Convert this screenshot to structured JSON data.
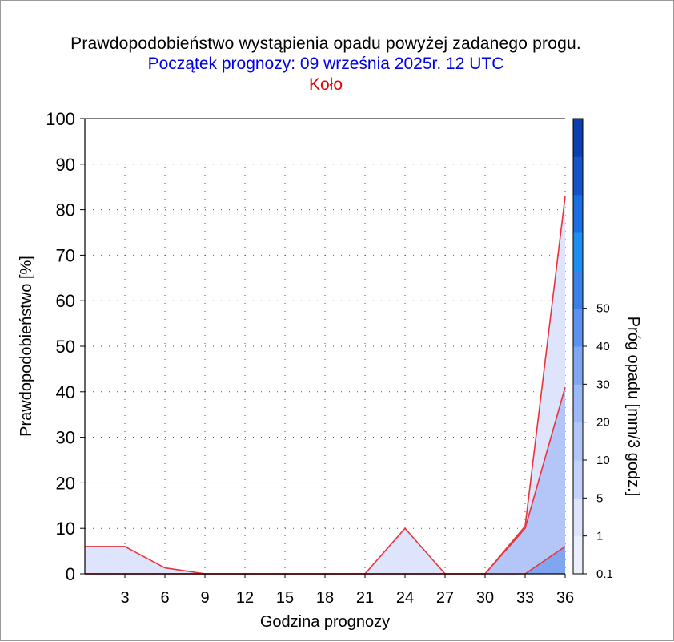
{
  "title": "Prawdopodobieństwo wystąpienia opadu powyżej zadanego progu.",
  "subtitle": "Początek prognozy: 09 września 2025r. 12 UTC",
  "location": "Koło",
  "colors": {
    "title": "#000000",
    "subtitle": "#0000e6",
    "location": "#e60000",
    "series_line": "#e8343c"
  },
  "chart_data": {
    "type": "area",
    "xlabel": "Godzina prognozy",
    "ylabel": "Prawdopodobieństwo [%]",
    "x": [
      0,
      3,
      6,
      9,
      12,
      15,
      18,
      21,
      24,
      27,
      30,
      33,
      36
    ],
    "x_ticks": [
      "3",
      "6",
      "9",
      "12",
      "15",
      "18",
      "21",
      "24",
      "27",
      "30",
      "33",
      "36"
    ],
    "y_ticks": [
      "0",
      "10",
      "20",
      "30",
      "40",
      "50",
      "60",
      "70",
      "80",
      "90",
      "100"
    ],
    "xlim": [
      0,
      36
    ],
    "ylim": [
      0,
      100
    ],
    "grid": true,
    "series": [
      {
        "threshold": 0.1,
        "color": "#dde4fc",
        "values": [
          6,
          6,
          1.3,
          0,
          0,
          0,
          0,
          0,
          10,
          0,
          0,
          10.5,
          83
        ]
      },
      {
        "threshold": 1,
        "color": "#b4c6f8",
        "values": [
          0,
          0,
          0,
          0,
          0,
          0,
          0,
          0,
          0,
          0,
          0,
          10,
          41
        ]
      },
      {
        "threshold": 5,
        "color": "#80a6f2",
        "values": [
          0,
          0,
          0,
          0,
          0,
          0,
          0,
          0,
          0,
          0,
          0,
          0,
          6
        ]
      }
    ],
    "colorbar": {
      "label": "Próg opadu [mm/3 godz.]",
      "tick_labels": [
        "0.1",
        "1",
        "5",
        "10",
        "20",
        "30",
        "40",
        "50"
      ],
      "colors": [
        "#ebeefe",
        "#dde4fc",
        "#c4d2fa",
        "#b4c6f8",
        "#9db8f6",
        "#80a6f2",
        "#5c92ee",
        "#3a80e8",
        "#1c8ef0",
        "#1a6ee0",
        "#1454c8",
        "#0c3eb0"
      ]
    }
  }
}
